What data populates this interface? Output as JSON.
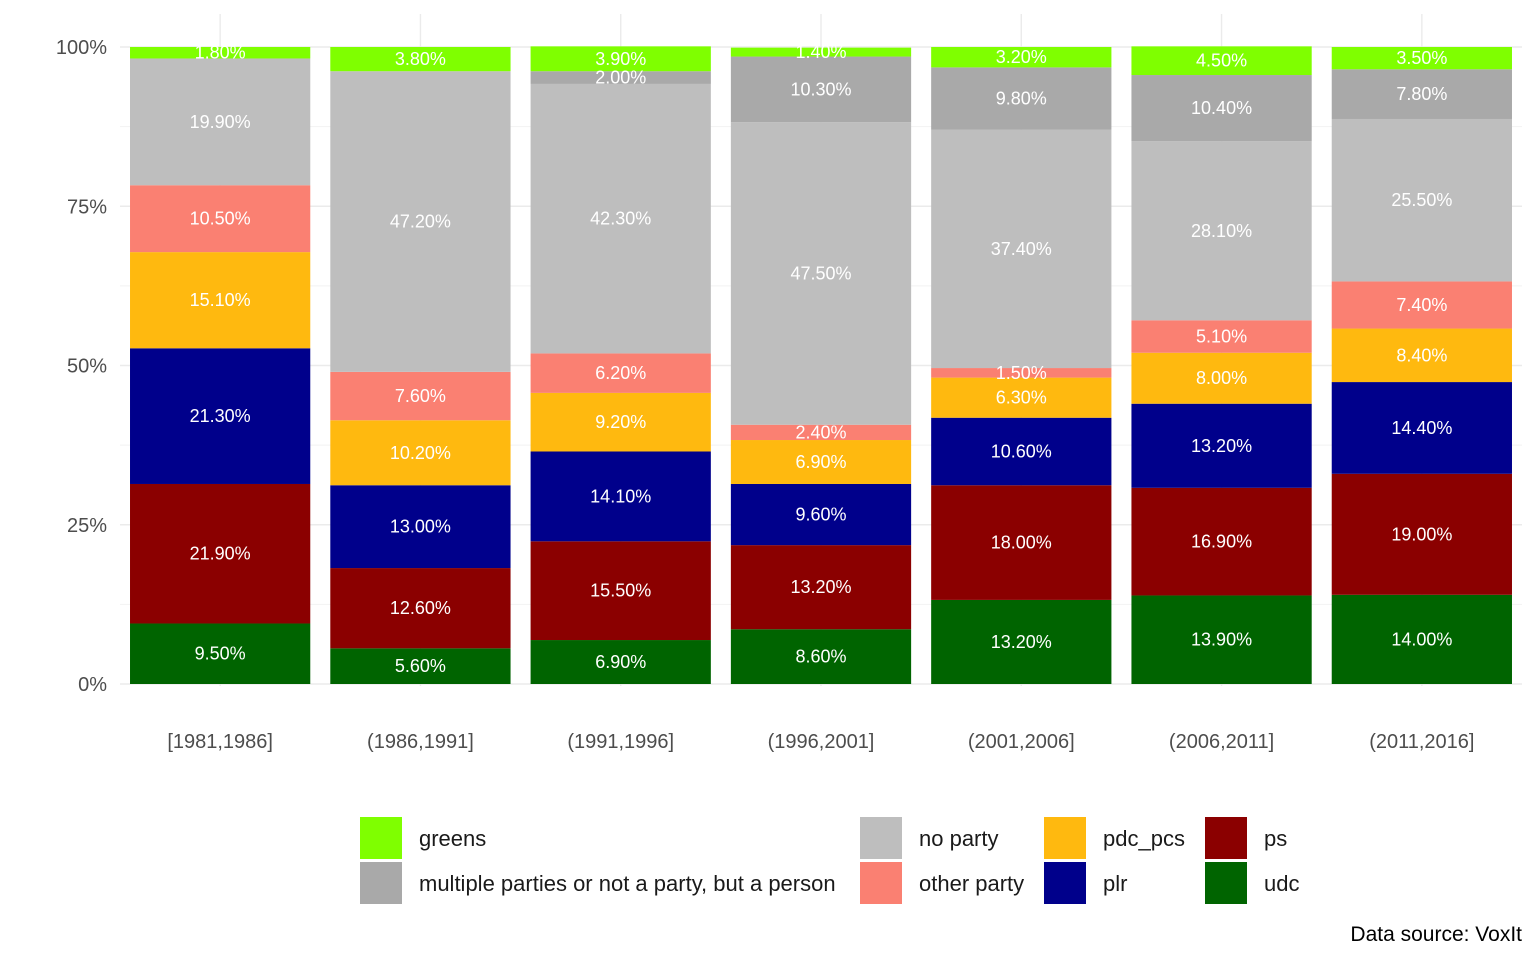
{
  "chart_data": {
    "type": "bar",
    "stacked": true,
    "categories": [
      "[1981,1986]",
      "(1986,1991]",
      "(1991,1996]",
      "(1996,2001]",
      "(2001,2006]",
      "(2006,2011]",
      "(2011,2016]"
    ],
    "ylim": [
      0,
      100
    ],
    "yticks": [
      0,
      25,
      50,
      75,
      100
    ],
    "ytick_labels": [
      "0%",
      "25%",
      "50%",
      "75%",
      "100%"
    ],
    "grid": true,
    "legend_position": "bottom",
    "series": [
      {
        "key": "udc",
        "name": "udc",
        "color": "#006400",
        "values": [
          9.5,
          5.6,
          6.9,
          8.6,
          13.2,
          13.9,
          14.0
        ],
        "labels": [
          "9.50%",
          "5.60%",
          "6.90%",
          "8.60%",
          "13.20%",
          "13.90%",
          "14.00%"
        ]
      },
      {
        "key": "ps",
        "name": "ps",
        "color": "#8B0000",
        "values": [
          21.9,
          12.6,
          15.5,
          13.2,
          18.0,
          16.9,
          19.0
        ],
        "labels": [
          "21.90%",
          "12.60%",
          "15.50%",
          "13.20%",
          "18.00%",
          "16.90%",
          "19.00%"
        ]
      },
      {
        "key": "plr",
        "name": "plr",
        "color": "#00008B",
        "values": [
          21.3,
          13.0,
          14.1,
          9.6,
          10.6,
          13.2,
          14.4
        ],
        "labels": [
          "21.30%",
          "13.00%",
          "14.10%",
          "9.60%",
          "10.60%",
          "13.20%",
          "14.40%"
        ]
      },
      {
        "key": "pdc_pcs",
        "name": "pdc_pcs",
        "color": "#FFB90F",
        "values": [
          15.1,
          10.2,
          9.2,
          6.9,
          6.3,
          8.0,
          8.4
        ],
        "labels": [
          "15.10%",
          "10.20%",
          "9.20%",
          "6.90%",
          "6.30%",
          "8.00%",
          "8.40%"
        ]
      },
      {
        "key": "other",
        "name": "other party",
        "color": "#FA8072",
        "values": [
          10.5,
          7.6,
          6.2,
          2.4,
          1.5,
          5.1,
          7.4
        ],
        "labels": [
          "10.50%",
          "7.60%",
          "6.20%",
          "2.40%",
          "1.50%",
          "5.10%",
          "7.40%"
        ]
      },
      {
        "key": "noparty",
        "name": "no party",
        "color": "#BEBEBE",
        "values": [
          19.9,
          47.2,
          42.3,
          47.5,
          37.4,
          28.1,
          25.5
        ],
        "labels": [
          "19.90%",
          "47.20%",
          "42.30%",
          "47.50%",
          "37.40%",
          "28.10%",
          "25.50%"
        ]
      },
      {
        "key": "multiple",
        "name": "multiple parties or not a party, but a person",
        "color": "#A9A9A9",
        "values": [
          0,
          0,
          2.0,
          10.3,
          9.8,
          10.4,
          7.8
        ],
        "labels": [
          "",
          "",
          "2.00%",
          "10.30%",
          "9.80%",
          "10.40%",
          "7.80%"
        ]
      },
      {
        "key": "greens",
        "name": "greens",
        "color": "#7FFF00",
        "values": [
          1.8,
          3.8,
          3.9,
          1.4,
          3.2,
          4.5,
          3.5
        ],
        "labels": [
          "1.80%",
          "3.80%",
          "3.90%",
          "1.40%",
          "3.20%",
          "4.50%",
          "3.50%"
        ]
      }
    ],
    "legend_order": [
      "greens",
      "multiple",
      "noparty",
      "other",
      "pdc_pcs",
      "plr",
      "ps",
      "udc"
    ],
    "caption": "Data source: VoxIt"
  }
}
